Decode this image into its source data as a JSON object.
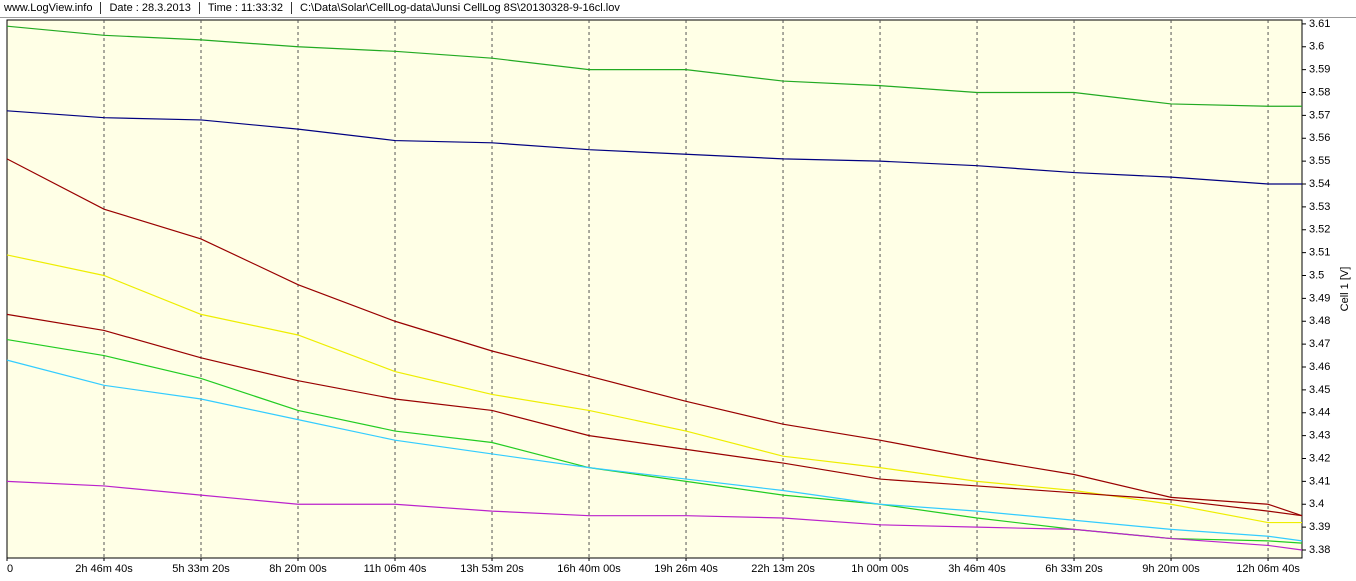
{
  "header": {
    "items": [
      "www.LogView.info",
      "Date : 28.3.2013",
      "Time : 11:33:32",
      "C:\\Data\\Solar\\CellLog-data\\Junsi CellLog 8S\\20130328-9-16cl.lov"
    ]
  },
  "chart_data": {
    "type": "line",
    "y_label": "Cell 1 [V]",
    "x": [
      0,
      10000,
      20000,
      30000,
      40000,
      50000,
      60000,
      70000,
      80000,
      90000,
      100000,
      110000,
      120000,
      130000,
      133500
    ],
    "xlim": [
      0,
      133500
    ],
    "xticks": [
      {
        "value": 0,
        "label": "0"
      },
      {
        "value": 10000,
        "label": "2h 46m 40s"
      },
      {
        "value": 20000,
        "label": "5h 33m 20s"
      },
      {
        "value": 30000,
        "label": "8h 20m 00s"
      },
      {
        "value": 40000,
        "label": "11h 06m 40s"
      },
      {
        "value": 50000,
        "label": "13h 53m 20s"
      },
      {
        "value": 60000,
        "label": "16h 40m 00s"
      },
      {
        "value": 70000,
        "label": "19h 26m 40s"
      },
      {
        "value": 80000,
        "label": "22h 13m 20s"
      },
      {
        "value": 90000,
        "label": "1h 00m 00s"
      },
      {
        "value": 100000,
        "label": "3h 46m 40s"
      },
      {
        "value": 110000,
        "label": "6h 33m 20s"
      },
      {
        "value": 120000,
        "label": "9h 20m 00s"
      },
      {
        "value": 130000,
        "label": "12h 06m 40s"
      }
    ],
    "ylim": [
      3.3765,
      3.6117
    ],
    "yticks": [
      3.38,
      3.39,
      3.4,
      3.41,
      3.42,
      3.43,
      3.44,
      3.45,
      3.46,
      3.47,
      3.48,
      3.49,
      3.5,
      3.51,
      3.52,
      3.53,
      3.54,
      3.55,
      3.56,
      3.57,
      3.58,
      3.59,
      3.6,
      3.61
    ],
    "grid": true,
    "series": [
      {
        "color": "#22aa22",
        "values": [
          3.609,
          3.605,
          3.603,
          3.6,
          3.598,
          3.595,
          3.59,
          3.59,
          3.585,
          3.583,
          3.58,
          3.58,
          3.575,
          3.574,
          3.574
        ]
      },
      {
        "color": "#000080",
        "values": [
          3.572,
          3.569,
          3.568,
          3.564,
          3.559,
          3.558,
          3.555,
          3.553,
          3.551,
          3.55,
          3.548,
          3.545,
          3.543,
          3.54,
          3.54
        ]
      },
      {
        "color": "#990000",
        "values": [
          3.551,
          3.529,
          3.516,
          3.496,
          3.48,
          3.467,
          3.456,
          3.445,
          3.435,
          3.428,
          3.42,
          3.413,
          3.403,
          3.4,
          3.395
        ]
      },
      {
        "color": "#eeee00",
        "values": [
          3.509,
          3.5,
          3.483,
          3.474,
          3.458,
          3.448,
          3.441,
          3.432,
          3.421,
          3.416,
          3.41,
          3.406,
          3.4,
          3.392,
          3.392
        ]
      },
      {
        "color": "#990000",
        "values": [
          3.483,
          3.476,
          3.464,
          3.454,
          3.446,
          3.441,
          3.43,
          3.424,
          3.418,
          3.411,
          3.408,
          3.405,
          3.402,
          3.397,
          3.395
        ]
      },
      {
        "color": "#22cc22",
        "values": [
          3.472,
          3.465,
          3.455,
          3.441,
          3.432,
          3.427,
          3.416,
          3.41,
          3.404,
          3.4,
          3.394,
          3.389,
          3.385,
          3.384,
          3.383
        ]
      },
      {
        "color": "#33ccff",
        "values": [
          3.463,
          3.452,
          3.446,
          3.437,
          3.428,
          3.422,
          3.416,
          3.411,
          3.406,
          3.4,
          3.397,
          3.393,
          3.389,
          3.386,
          3.384
        ]
      },
      {
        "color": "#bb22cc",
        "values": [
          3.41,
          3.408,
          3.404,
          3.4,
          3.4,
          3.397,
          3.395,
          3.395,
          3.394,
          3.391,
          3.39,
          3.389,
          3.385,
          3.382,
          3.38
        ]
      }
    ]
  }
}
